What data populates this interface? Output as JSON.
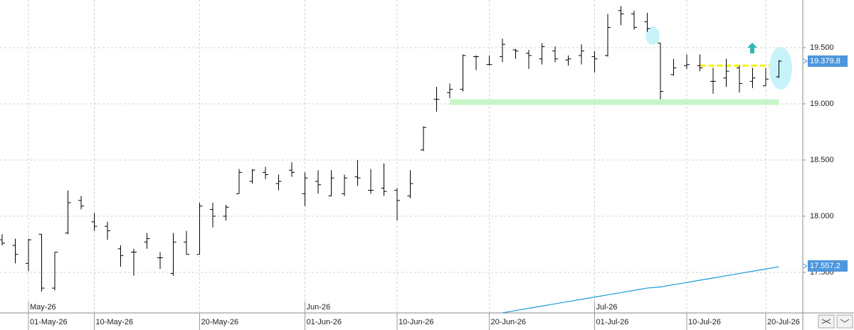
{
  "chart_data": {
    "type": "ohlc",
    "categories": [
      null,
      null,
      "01-May-26",
      null,
      null,
      null,
      null,
      "10-May-26",
      null,
      null,
      null,
      null,
      null,
      null,
      null,
      "20-May-26",
      null,
      null,
      null,
      null,
      null,
      null,
      null,
      "01-Jun-26",
      null,
      null,
      null,
      null,
      null,
      null,
      "10-Jun-26",
      null,
      null,
      null,
      null,
      null,
      null,
      "20-Jun-26",
      null,
      null,
      null,
      null,
      null,
      null,
      null,
      "01-Jul-26",
      null,
      null,
      null,
      null,
      null,
      null,
      "10-Jul-26",
      null,
      null,
      null,
      null,
      null,
      "20-Jul-26",
      null
    ],
    "months": [
      null,
      null,
      "May-26",
      null,
      null,
      null,
      null,
      null,
      null,
      null,
      null,
      null,
      null,
      null,
      null,
      null,
      null,
      null,
      null,
      null,
      null,
      null,
      null,
      "Jun-26",
      null,
      null,
      null,
      null,
      null,
      null,
      null,
      null,
      null,
      null,
      null,
      null,
      null,
      null,
      null,
      null,
      null,
      null,
      null,
      null,
      null,
      "Jul-26",
      null,
      null,
      null,
      null,
      null,
      null,
      null,
      null,
      null,
      null,
      null,
      null,
      null,
      null
    ],
    "open": [
      17.79,
      17.74,
      17.58,
      17.84,
      17.36,
      17.85,
      18.14,
      17.95,
      17.91,
      17.71,
      17.68,
      17.77,
      17.63,
      17.49,
      17.77,
      17.66,
      18.06,
      18.0,
      18.2,
      18.31,
      18.39,
      18.29,
      18.41,
      18.2,
      18.31,
      18.18,
      18.2,
      18.35,
      18.23,
      18.25,
      18.23,
      18.18,
      18.59,
      19.04,
      19.1,
      19.13,
      19.42,
      19.35,
      19.42,
      19.48,
      19.45,
      19.4,
      19.47,
      19.39,
      19.43,
      19.42,
      19.43,
      19.83,
      19.8,
      19.73,
      19.54,
      19.26,
      19.34,
      19.34,
      19.2,
      19.23,
      19.32,
      19.2,
      19.16,
      19.24
    ],
    "high": [
      17.84,
      17.8,
      17.8,
      17.84,
      17.68,
      18.23,
      18.18,
      18.03,
      17.95,
      17.74,
      17.71,
      17.85,
      17.68,
      17.85,
      17.87,
      18.12,
      18.12,
      18.1,
      18.42,
      18.42,
      18.44,
      18.37,
      18.48,
      18.39,
      18.41,
      18.41,
      18.37,
      18.5,
      18.42,
      18.47,
      18.25,
      18.41,
      18.8,
      19.15,
      19.18,
      19.44,
      19.43,
      19.43,
      19.58,
      19.49,
      19.48,
      19.54,
      19.51,
      19.43,
      19.53,
      19.47,
      19.8,
      19.87,
      19.83,
      19.81,
      19.54,
      19.4,
      19.44,
      19.44,
      19.32,
      19.4,
      19.34,
      19.32,
      19.32,
      19.39
    ],
    "low": [
      17.74,
      17.58,
      17.51,
      17.33,
      17.34,
      17.84,
      18.06,
      17.87,
      17.79,
      17.55,
      17.47,
      17.71,
      17.53,
      17.47,
      17.66,
      17.66,
      17.9,
      17.96,
      18.2,
      18.29,
      18.33,
      18.23,
      18.35,
      18.09,
      18.2,
      18.18,
      18.18,
      18.27,
      18.2,
      18.18,
      17.96,
      18.16,
      18.58,
      18.93,
      19.05,
      19.11,
      19.3,
      19.34,
      19.37,
      19.4,
      19.31,
      19.35,
      19.37,
      19.34,
      19.35,
      19.28,
      19.42,
      19.7,
      19.66,
      19.64,
      19.04,
      19.25,
      19.31,
      19.29,
      19.09,
      19.15,
      19.1,
      19.14,
      19.16,
      19.23
    ],
    "close": [
      17.76,
      17.66,
      17.79,
      17.36,
      17.68,
      18.12,
      18.09,
      17.91,
      17.87,
      17.65,
      17.68,
      17.8,
      17.63,
      17.77,
      17.66,
      18.09,
      18.0,
      18.08,
      18.39,
      18.41,
      18.37,
      18.31,
      18.39,
      18.34,
      18.28,
      18.34,
      18.34,
      18.34,
      18.23,
      18.22,
      18.14,
      18.29,
      18.79,
      19.04,
      19.13,
      19.43,
      19.42,
      19.35,
      19.53,
      19.47,
      19.43,
      19.51,
      19.4,
      19.4,
      19.47,
      19.4,
      19.68,
      19.8,
      19.68,
      19.67,
      19.11,
      19.32,
      19.35,
      19.32,
      19.2,
      19.29,
      19.18,
      19.23,
      19.22,
      19.38
    ],
    "bar_color": "#000000",
    "ma": {
      "color": "#1a9ad6",
      "values": [
        null,
        null,
        null,
        null,
        null,
        null,
        null,
        null,
        null,
        null,
        null,
        null,
        null,
        null,
        null,
        null,
        null,
        null,
        null,
        null,
        null,
        null,
        null,
        null,
        null,
        null,
        null,
        null,
        null,
        null,
        null,
        null,
        null,
        null,
        null,
        null,
        null,
        null,
        17.14,
        17.16,
        17.18,
        17.2,
        17.22,
        17.24,
        17.26,
        17.28,
        17.3,
        17.32,
        17.34,
        17.36,
        17.37,
        17.39,
        17.41,
        17.43,
        17.45,
        17.47,
        17.49,
        17.51,
        17.53,
        17.55
      ]
    },
    "support_level": 19.015,
    "support_color": "#c8f5c8",
    "resistance_level": 19.34,
    "resistance_color": "#f2f20a",
    "price_labels": [
      {
        "value": 19.3798,
        "label": "19.379,8"
      },
      {
        "value": 17.5572,
        "label": "17.557,2"
      }
    ],
    "ylim": [
      17.139,
      19.924
    ],
    "yticks": [
      {
        "value": 17.5,
        "label": "17.500"
      },
      {
        "value": 18.0,
        "label": "18.000"
      },
      {
        "value": 18.5,
        "label": "18.500"
      },
      {
        "value": 19.0,
        "label": "19.000"
      },
      {
        "value": 19.5,
        "label": "19.500"
      }
    ],
    "grid": true
  }
}
